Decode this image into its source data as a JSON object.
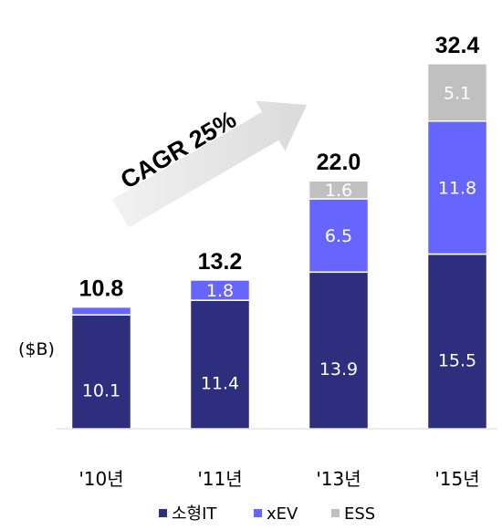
{
  "chart_data": {
    "type": "bar",
    "stacked": true,
    "categories": [
      "'10년",
      "'11년",
      "'13년",
      "'15년"
    ],
    "series": [
      {
        "name": "소형IT",
        "color": "#2e2e7e",
        "values": [
          10.1,
          11.4,
          13.9,
          15.5
        ]
      },
      {
        "name": "xEV",
        "color": "#6666ff",
        "values": [
          0.7,
          1.8,
          6.5,
          11.8
        ]
      },
      {
        "name": "ESS",
        "color": "#c0c0c0",
        "values": [
          0.0,
          0.0,
          1.6,
          5.1
        ]
      }
    ],
    "segment_labels": [
      [
        "10.1",
        "",
        ""
      ],
      [
        "11.4",
        "1.8",
        ""
      ],
      [
        "13.9",
        "6.5",
        "1.6"
      ],
      [
        "15.5",
        "11.8",
        "5.1"
      ]
    ],
    "totals": [
      "10.8",
      "13.2",
      "22.0",
      "32.4"
    ],
    "unit": "($B)",
    "annotation": "CAGR 25%",
    "ylim": [
      0,
      34
    ],
    "grid": false,
    "legend_position": "bottom"
  }
}
